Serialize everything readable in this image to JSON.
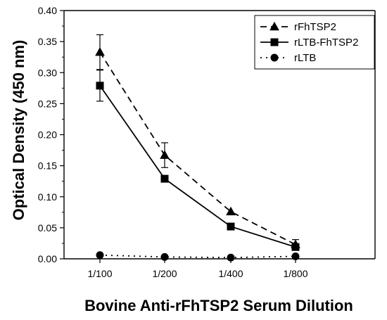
{
  "chart_data": {
    "type": "line",
    "title": "",
    "xlabel": "Bovine Anti-rFhTSP2 Serum Dilution",
    "ylabel": "Optical Density (450 nm)",
    "categories": [
      "1/100",
      "1/200",
      "1/400",
      "1/800"
    ],
    "ylim": [
      0,
      0.4
    ],
    "yticks": [
      "0.00",
      "0.05",
      "0.10",
      "0.15",
      "0.20",
      "0.25",
      "0.30",
      "0.35",
      "0.40"
    ],
    "grid": false,
    "legend_position": "top-right",
    "series": [
      {
        "name": "rFhTSP2",
        "marker": "triangle",
        "line_style": "dashed",
        "color": "#000000",
        "values": [
          0.333,
          0.167,
          0.076,
          0.023
        ],
        "error": [
          0.028,
          0.02,
          0.0,
          0.008
        ]
      },
      {
        "name": "rLTB-FhTSP2",
        "marker": "square",
        "line_style": "solid",
        "color": "#000000",
        "values": [
          0.279,
          0.129,
          0.052,
          0.019
        ],
        "error": [
          0.025,
          0.0,
          0.0,
          0.0
        ]
      },
      {
        "name": "rLTB",
        "marker": "circle",
        "line_style": "dotted",
        "color": "#000000",
        "values": [
          0.006,
          0.003,
          0.002,
          0.004
        ],
        "error": [
          0.0,
          0.0,
          0.0,
          0.0
        ]
      }
    ]
  }
}
